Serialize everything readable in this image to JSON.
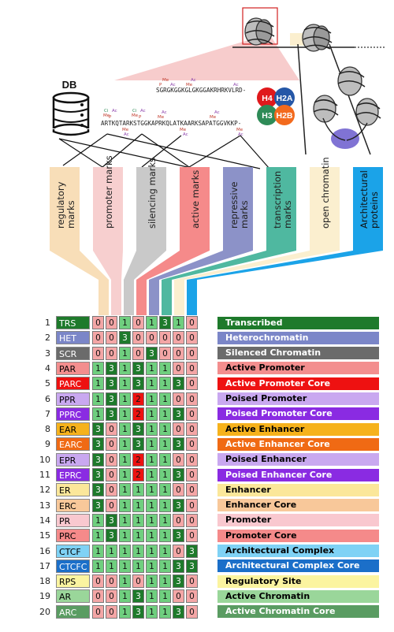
{
  "db_label": "DB",
  "h3_seq": "ARTKQTARKSTGGKAPRKQLATKAARKSAPATGGVKKP-",
  "h4_seq": "SGRGKGGKGLGKGGAKRHRKVLRD-",
  "histones": [
    "H4",
    "H2A",
    "H3",
    "H2B"
  ],
  "histone_colors": {
    "H4": "#e0191c",
    "H2A": "#2557a7",
    "H3": "#2e8b57",
    "H2B": "#f36a1d"
  },
  "mark_labels": {
    "me": "Me",
    "ac": "Ac",
    "ci": "Ci",
    "p": "P"
  },
  "category_colors": [
    "#f8deb8",
    "#f7cfcf",
    "#c9c9c9",
    "#f58a8a",
    "#8c92c8",
    "#4fb8a0",
    "#fbefcf",
    "#1ba3e8"
  ],
  "categories": [
    "regulatory marks",
    "promoter marks",
    "silencing marks",
    "active marks",
    "repressive marks",
    "transcription marks",
    "open chromatin",
    "Architectural proteins"
  ],
  "column_colors": [
    "#f8deb8",
    "#f7cfcf",
    "#c9c9c9",
    "#f58a8a",
    "#8c92c8",
    "#4fb8a0",
    "#fbefcf",
    "#1ba3e8"
  ],
  "state_colors": {
    "0": "#f4a6a6",
    "1": "#6fcf7f",
    "2": "#ee1111",
    "3": "#1e7a2b"
  },
  "states": [
    {
      "num": "1",
      "abbr": "TRS",
      "name": "Transcribed",
      "color": "#1e7a2b",
      "text": "#ffffff",
      "values": [
        "0",
        "0",
        "1",
        "0",
        "1",
        "3",
        "1",
        "0"
      ]
    },
    {
      "num": "2",
      "abbr": "HET",
      "name": "Heterochromatin",
      "color": "#7b86c8",
      "text": "#ffffff",
      "values": [
        "0",
        "0",
        "3",
        "0",
        "0",
        "0",
        "0",
        "0"
      ]
    },
    {
      "num": "3",
      "abbr": "SCR",
      "name": "Silenced Chromatin",
      "color": "#6b6b6b",
      "text": "#ffffff",
      "values": [
        "0",
        "0",
        "1",
        "0",
        "3",
        "0",
        "0",
        "0"
      ]
    },
    {
      "num": "4",
      "abbr": "PAR",
      "name": "Active Promoter",
      "color": "#f38e8e",
      "text": "#000000",
      "values": [
        "1",
        "3",
        "1",
        "3",
        "1",
        "1",
        "0",
        "0"
      ]
    },
    {
      "num": "5",
      "abbr": "PARC",
      "name": "Active Promoter Core",
      "color": "#ee1111",
      "text": "#ffffff",
      "values": [
        "1",
        "3",
        "1",
        "3",
        "1",
        "1",
        "3",
        "0"
      ]
    },
    {
      "num": "6",
      "abbr": "PPR",
      "name": "Poised Promoter",
      "color": "#c9a8f0",
      "text": "#000000",
      "values": [
        "1",
        "3",
        "1",
        "2",
        "1",
        "1",
        "0",
        "0"
      ]
    },
    {
      "num": "7",
      "abbr": "PPRC",
      "name": "Poised Promoter Core",
      "color": "#8a2be2",
      "text": "#ffffff",
      "values": [
        "1",
        "3",
        "1",
        "2",
        "1",
        "1",
        "3",
        "0"
      ]
    },
    {
      "num": "8",
      "abbr": "EAR",
      "name": "Active Enhancer",
      "color": "#f6b21c",
      "text": "#000000",
      "values": [
        "3",
        "0",
        "1",
        "3",
        "1",
        "1",
        "0",
        "0"
      ]
    },
    {
      "num": "9",
      "abbr": "EARC",
      "name": "Active Enhancer Core",
      "color": "#f06a14",
      "text": "#ffffff",
      "values": [
        "3",
        "0",
        "1",
        "3",
        "1",
        "1",
        "3",
        "0"
      ]
    },
    {
      "num": "10",
      "abbr": "EPR",
      "name": "Poised Enhancer",
      "color": "#c9a8f0",
      "text": "#000000",
      "values": [
        "3",
        "0",
        "1",
        "2",
        "1",
        "1",
        "0",
        "0"
      ]
    },
    {
      "num": "11",
      "abbr": "EPRC",
      "name": "Poised Enhancer Core",
      "color": "#8a2be2",
      "text": "#ffffff",
      "values": [
        "3",
        "0",
        "1",
        "2",
        "1",
        "1",
        "3",
        "0"
      ]
    },
    {
      "num": "12",
      "abbr": "ER",
      "name": "Enhancer",
      "color": "#fbe79a",
      "text": "#000000",
      "values": [
        "3",
        "0",
        "1",
        "1",
        "1",
        "1",
        "0",
        "0"
      ]
    },
    {
      "num": "13",
      "abbr": "ERC",
      "name": "Enhancer Core",
      "color": "#f8c89a",
      "text": "#000000",
      "values": [
        "3",
        "0",
        "1",
        "1",
        "1",
        "1",
        "3",
        "0"
      ]
    },
    {
      "num": "14",
      "abbr": "PR",
      "name": "Promoter",
      "color": "#f9c8cf",
      "text": "#000000",
      "values": [
        "1",
        "3",
        "1",
        "1",
        "1",
        "1",
        "0",
        "0"
      ]
    },
    {
      "num": "15",
      "abbr": "PRC",
      "name": "Promoter Core",
      "color": "#f58a8a",
      "text": "#000000",
      "values": [
        "1",
        "3",
        "1",
        "1",
        "1",
        "1",
        "3",
        "0"
      ]
    },
    {
      "num": "16",
      "abbr": "CTCF",
      "name": "Architectural Complex",
      "color": "#7fd2f5",
      "text": "#000000",
      "values": [
        "1",
        "1",
        "1",
        "1",
        "1",
        "1",
        "0",
        "3"
      ]
    },
    {
      "num": "17",
      "abbr": "CTCFC",
      "name": "Architectural Complex Core",
      "color": "#1b6fc9",
      "text": "#ffffff",
      "values": [
        "1",
        "1",
        "1",
        "1",
        "1",
        "1",
        "3",
        "3"
      ]
    },
    {
      "num": "18",
      "abbr": "RPS",
      "name": "Regulatory Site",
      "color": "#fbf4a0",
      "text": "#000000",
      "values": [
        "0",
        "0",
        "1",
        "0",
        "1",
        "1",
        "3",
        "0"
      ]
    },
    {
      "num": "19",
      "abbr": "AR",
      "name": "Active Chromatin",
      "color": "#9ad69a",
      "text": "#000000",
      "values": [
        "0",
        "0",
        "1",
        "3",
        "1",
        "1",
        "0",
        "0"
      ]
    },
    {
      "num": "20",
      "abbr": "ARC",
      "name": "Active Chromatin Core",
      "color": "#5a9c62",
      "text": "#ffffff",
      "values": [
        "0",
        "0",
        "1",
        "3",
        "1",
        "1",
        "3",
        "0"
      ]
    }
  ]
}
